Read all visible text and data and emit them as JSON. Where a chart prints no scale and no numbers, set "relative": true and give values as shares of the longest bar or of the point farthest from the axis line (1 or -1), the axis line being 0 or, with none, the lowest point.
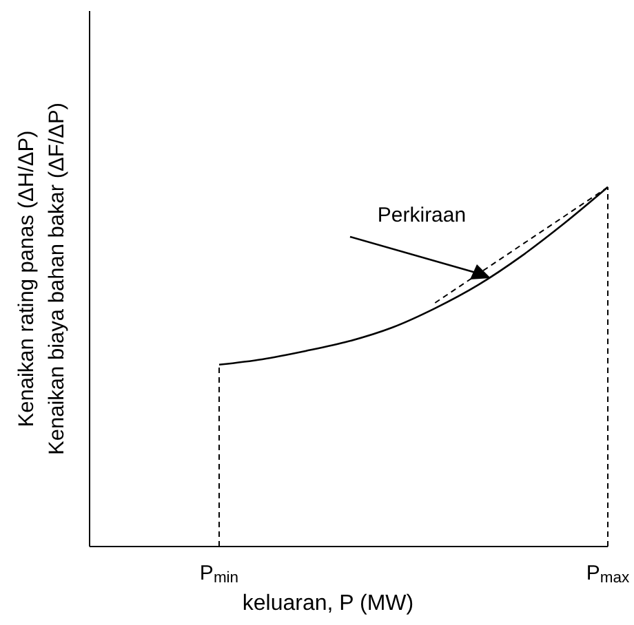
{
  "chart_data": {
    "type": "line",
    "relative": true,
    "xlabel": "keluaran, P (MW)",
    "ylabel": "Kenaikan rating panas (ΔH/ΔP)\nKenaikan biaya bahan bakar (ΔF/ΔP)",
    "categories": [
      null,
      null,
      null,
      "P$_{min}$",
      null,
      null,
      null,
      null,
      null,
      null,
      null,
      null,
      "P$_{max}$"
    ],
    "series": [
      {
        "color": "#000000",
        "line_style": "solid",
        "values": [
          null,
          null,
          null,
          0.506,
          0.521,
          0.544,
          0.571,
          0.609,
          0.663,
          0.728,
          0.808,
          0.9,
          1
        ]
      },
      {
        "color": "#000000",
        "line_style": "dashed",
        "values": [
          null,
          null,
          null,
          null,
          null,
          null,
          null,
          null,
          0.678,
          null,
          null,
          null,
          1
        ]
      }
    ],
    "ref_lines": [
      {
        "axis": "x",
        "value": "P$_{min}$",
        "line_style": "dashed",
        "color": "#000000"
      },
      {
        "axis": "x",
        "value": "P$_{max}$",
        "line_style": "dashed",
        "color": "#000000"
      }
    ],
    "annotations": [
      "Perkiraan"
    ],
    "grid": false,
    "legend": false,
    "marker": "none"
  }
}
